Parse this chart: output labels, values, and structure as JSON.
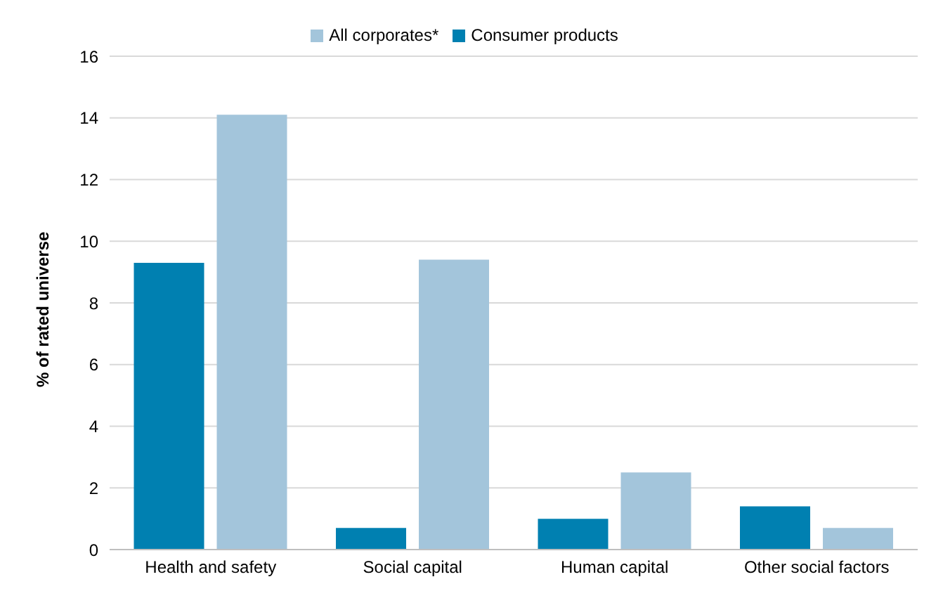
{
  "chart_data": {
    "type": "bar",
    "ylabel": "% of rated universe",
    "categories": [
      "Health and safety",
      "Social capital",
      "Human capital",
      "Other social factors"
    ],
    "series": [
      {
        "name": "Consumer products",
        "color": "#0080b1",
        "values": [
          9.3,
          0.7,
          1.0,
          1.4
        ]
      },
      {
        "name": "All corporates*",
        "color": "#a3c5db",
        "values": [
          14.1,
          9.4,
          2.5,
          0.7
        ]
      }
    ],
    "ylim": [
      0,
      16
    ],
    "yticks": [
      0,
      2,
      4,
      6,
      8,
      10,
      12,
      14,
      16
    ],
    "grid": "y",
    "legend": "top"
  }
}
